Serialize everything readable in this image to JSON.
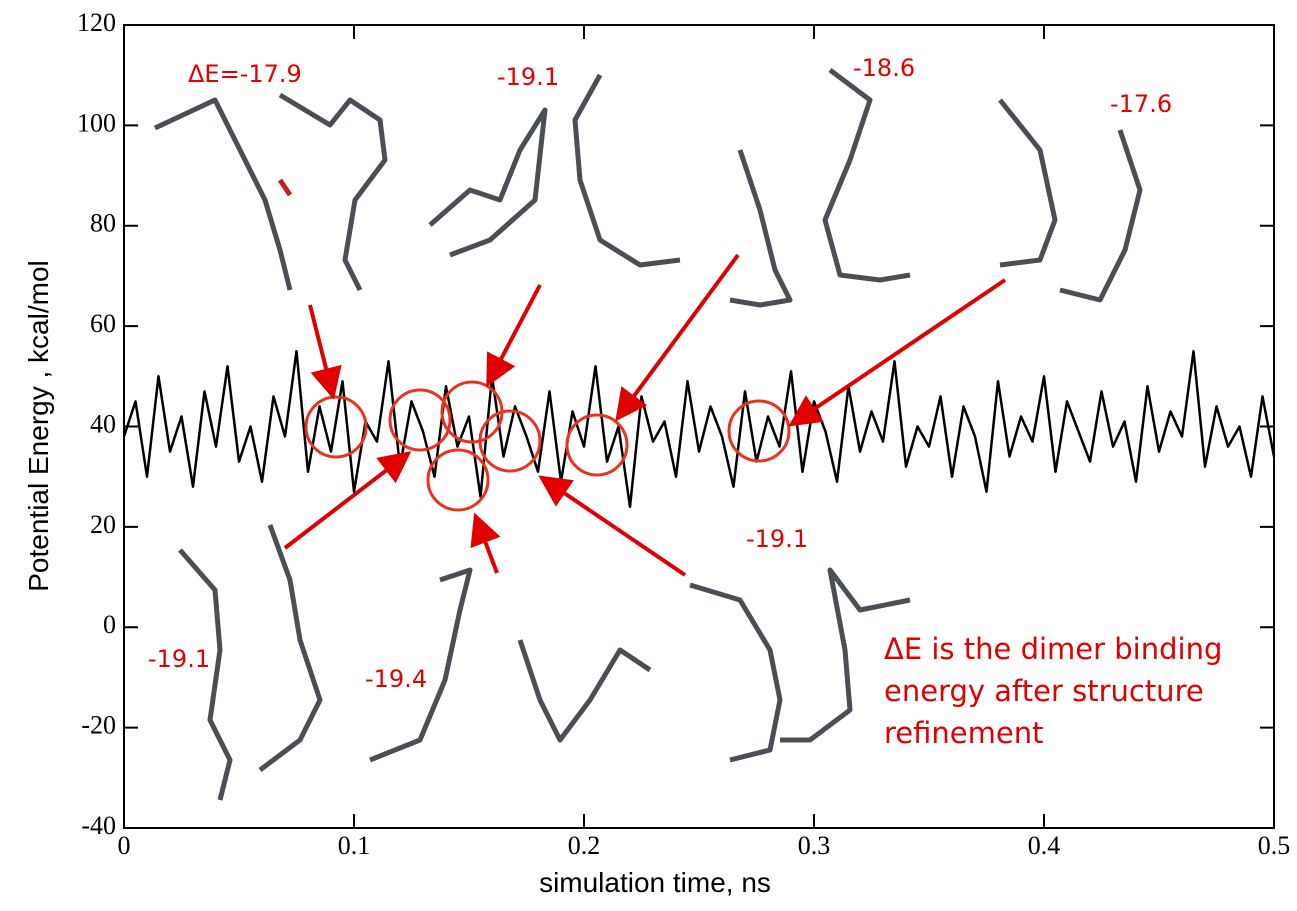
{
  "chart_data": {
    "type": "line",
    "xlabel": "simulation time, ns",
    "ylabel": "Potential Energy , kcal/mol",
    "xlim": [
      0,
      0.5
    ],
    "ylim": [
      -40,
      120
    ],
    "xticks": [
      0,
      0.1,
      0.2,
      0.3,
      0.4,
      0.5
    ],
    "yticks": [
      -40,
      -20,
      0,
      20,
      40,
      60,
      80,
      100,
      120
    ],
    "color": "#000000",
    "x": [
      0,
      0.005,
      0.01,
      0.015,
      0.02,
      0.025,
      0.03,
      0.035,
      0.04,
      0.045,
      0.05,
      0.055,
      0.06,
      0.065,
      0.07,
      0.075,
      0.08,
      0.085,
      0.09,
      0.095,
      0.1,
      0.105,
      0.11,
      0.115,
      0.12,
      0.125,
      0.13,
      0.135,
      0.14,
      0.145,
      0.15,
      0.155,
      0.16,
      0.165,
      0.17,
      0.175,
      0.18,
      0.185,
      0.19,
      0.195,
      0.2,
      0.205,
      0.21,
      0.215,
      0.22,
      0.225,
      0.23,
      0.235,
      0.24,
      0.245,
      0.25,
      0.255,
      0.26,
      0.265,
      0.27,
      0.275,
      0.28,
      0.285,
      0.29,
      0.295,
      0.3,
      0.305,
      0.31,
      0.315,
      0.32,
      0.325,
      0.33,
      0.335,
      0.34,
      0.345,
      0.35,
      0.355,
      0.36,
      0.365,
      0.37,
      0.375,
      0.38,
      0.385,
      0.39,
      0.395,
      0.4,
      0.405,
      0.41,
      0.415,
      0.42,
      0.425,
      0.43,
      0.435,
      0.44,
      0.445,
      0.45,
      0.455,
      0.46,
      0.465,
      0.47,
      0.475,
      0.48,
      0.485,
      0.49,
      0.495,
      0.5
    ],
    "values": [
      38,
      45,
      30,
      50,
      35,
      42,
      28,
      47,
      36,
      52,
      33,
      40,
      29,
      46,
      38,
      55,
      31,
      44,
      35,
      49,
      27,
      41,
      37,
      53,
      32,
      45,
      39,
      30,
      48,
      36,
      42,
      26,
      50,
      34,
      44,
      38,
      31,
      47,
      29,
      43,
      36,
      52,
      33,
      40,
      24,
      46,
      37,
      41,
      30,
      49,
      35,
      44,
      38,
      28,
      47,
      33,
      42,
      36,
      51,
      31,
      45,
      39,
      29,
      48,
      35,
      43,
      37,
      53,
      32,
      40,
      36,
      46,
      30,
      44,
      38,
      27,
      49,
      34,
      42,
      37,
      50,
      31,
      45,
      39,
      33,
      47,
      36,
      41,
      29,
      48,
      35,
      43,
      38,
      55,
      32,
      44,
      36,
      40,
      30,
      46,
      34
    ],
    "annotations": [
      "ΔE=-17.9",
      "-19.1",
      "-18.6",
      "-17.6",
      "-19.1",
      "-19.4",
      "-19.1",
      "ΔE is the dimer binding energy after structure refinement"
    ]
  }
}
